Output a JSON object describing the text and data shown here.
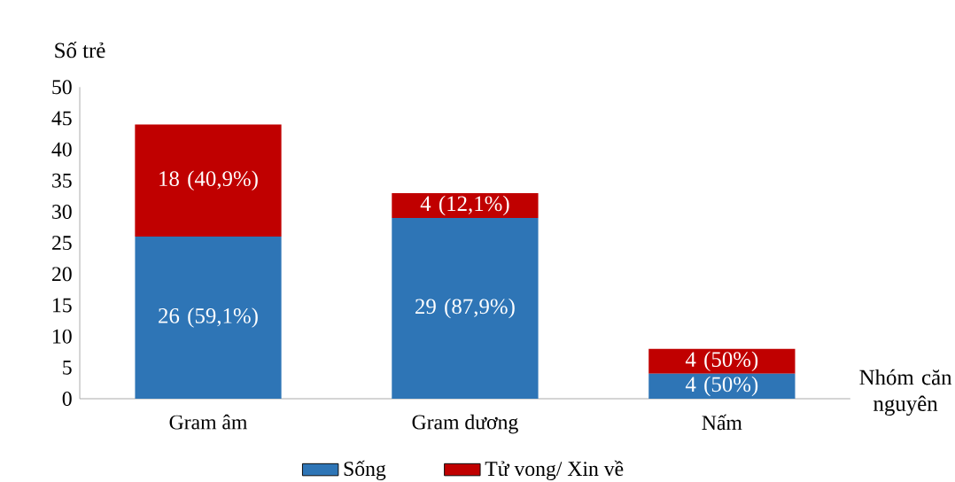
{
  "chart_data": {
    "type": "bar",
    "stacked": true,
    "xlabel": "Nhóm căn nguyên",
    "ylabel": "Số trẻ",
    "categories": [
      "Gram âm",
      "Gram dương",
      "Nấm"
    ],
    "series": [
      {
        "name": "Sống",
        "color": "#2e75b6",
        "values": [
          26,
          29,
          4
        ],
        "value_labels": [
          "26 (59,1%)",
          "29 (87,9%)",
          "4 (50%)"
        ]
      },
      {
        "name": "Tử vong/ Xin về",
        "color": "#c00000",
        "values": [
          18,
          4,
          4
        ],
        "value_labels": [
          "18 (40,9%)",
          "4 (12,1%)",
          "4 (50%)"
        ]
      }
    ],
    "ylim": [
      0,
      50
    ],
    "yticks": [
      0,
      5,
      10,
      15,
      20,
      25,
      30,
      35,
      40,
      45,
      50
    ],
    "legend": "bottom"
  }
}
